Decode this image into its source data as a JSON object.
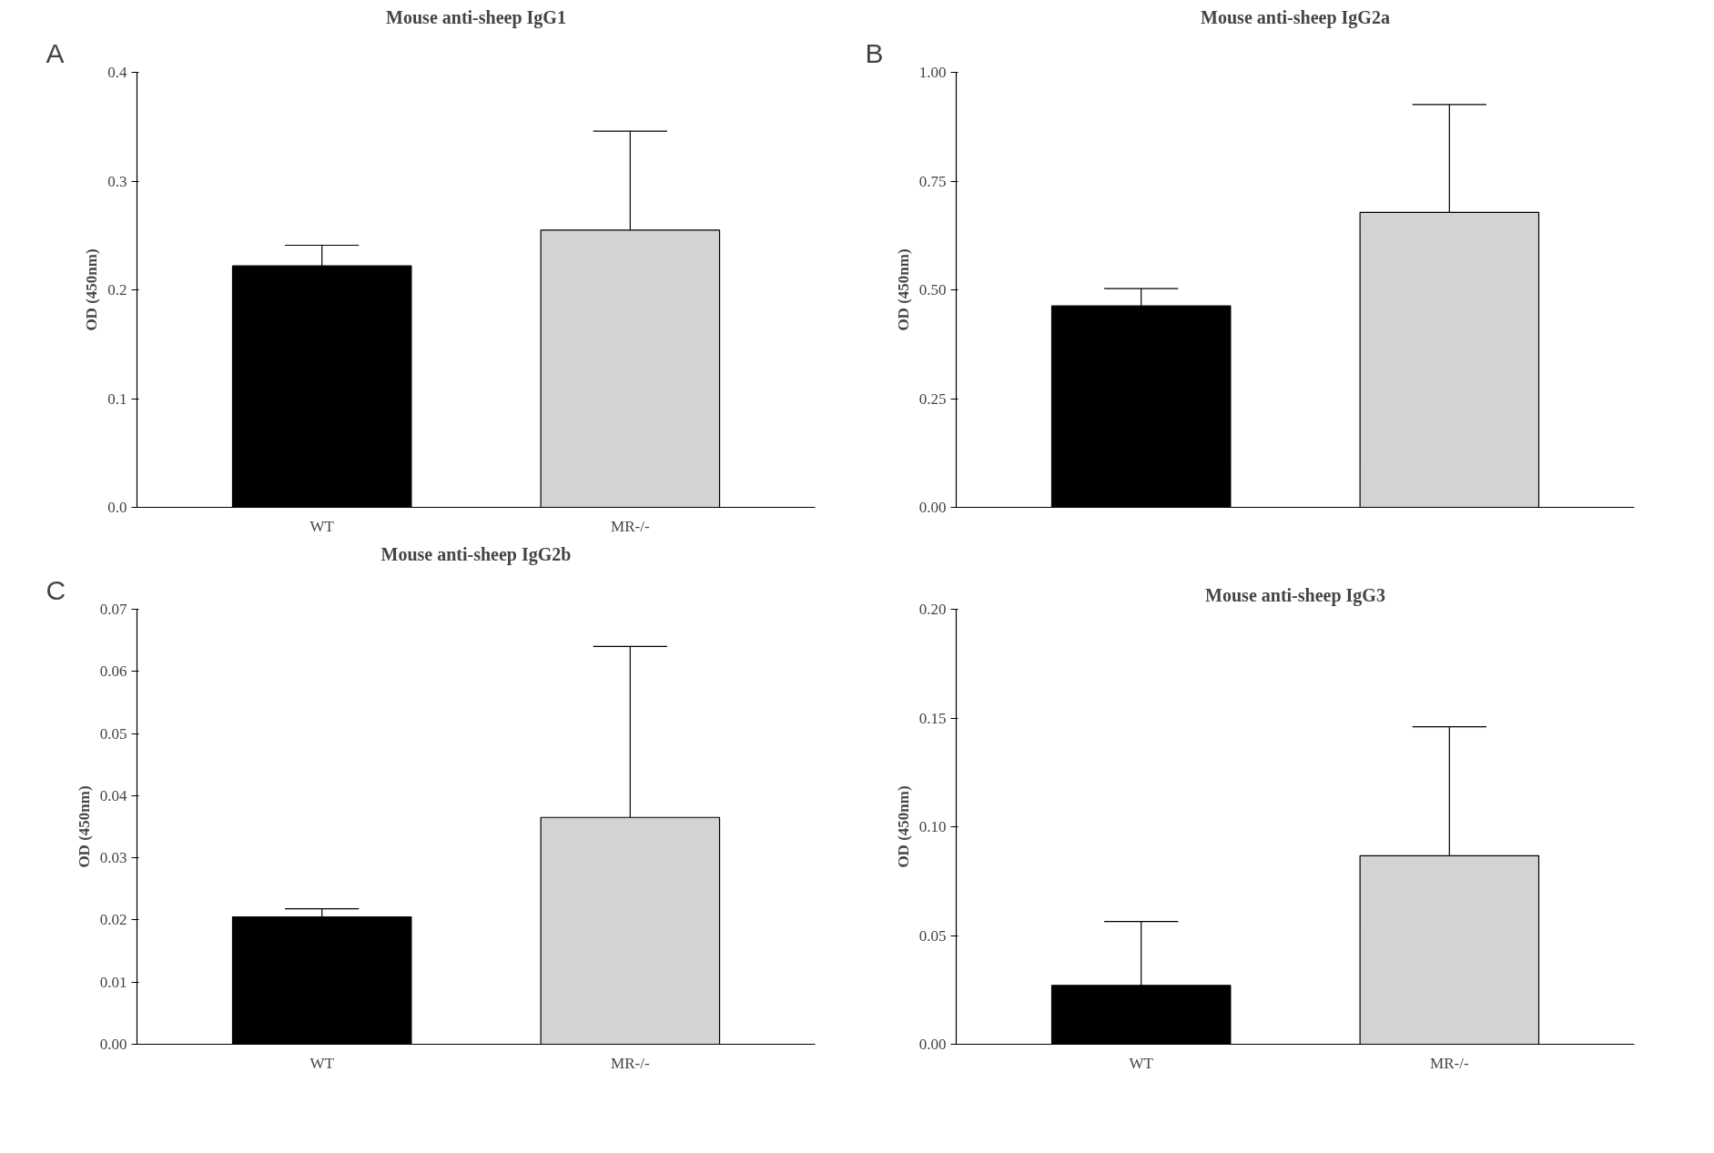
{
  "chart_data": [
    {
      "type": "bar",
      "title": "Mouse anti-sheep IgG1",
      "ylabel": "OD (450nm)",
      "annotations": [
        "A"
      ],
      "categories": [
        "WT",
        "MR-/-"
      ],
      "values": [
        0.222,
        0.255
      ],
      "colors": [
        "#000000",
        "#d3d3d3"
      ],
      "errors": [
        [
          0.222,
          0.241
        ],
        [
          0.255,
          0.346
        ]
      ],
      "ylim": [
        0,
        0.4
      ],
      "yticks": [
        {
          "value": 0,
          "label": "0.0"
        },
        0.1,
        0.2,
        0.3,
        0.4
      ],
      "grid": false
    },
    {
      "type": "bar",
      "title": "Mouse anti-sheep IgG2a",
      "ylabel": "OD (450nm)",
      "annotations": [
        "B"
      ],
      "categories": [
        null,
        null
      ],
      "values": [
        0.463,
        0.678
      ],
      "colors": [
        "#000000",
        "#d3d3d3"
      ],
      "errors": [
        [
          0.463,
          0.503
        ],
        [
          0.678,
          0.926
        ]
      ],
      "ylim": [
        0,
        1
      ],
      "yticks": [
        {
          "value": 0,
          "label": "0.00"
        },
        0.25,
        {
          "value": 0.5,
          "label": "0.50"
        },
        0.75,
        {
          "value": 1,
          "label": "1.00"
        }
      ],
      "grid": false
    },
    {
      "type": "bar",
      "title": "Mouse anti-sheep IgG2b",
      "ylabel": "OD (450nm)",
      "annotations": [
        "C"
      ],
      "categories": [
        "WT",
        "MR-/-"
      ],
      "values": [
        0.0205,
        0.0365
      ],
      "colors": [
        "#000000",
        "#d3d3d3"
      ],
      "errors": [
        [
          0.0205,
          0.0218
        ],
        [
          0.0365,
          0.064
        ]
      ],
      "ylim": [
        0,
        0.07
      ],
      "yticks": [
        {
          "value": 0,
          "label": "0.00"
        },
        0.01,
        0.02,
        0.03,
        0.04,
        0.05,
        0.06,
        0.07
      ],
      "grid": false
    },
    {
      "type": "bar",
      "title": "Mouse anti-sheep IgG3",
      "ylabel": "OD (450nm)",
      "categories": [
        "WT",
        "MR-/-"
      ],
      "values": [
        0.0271,
        0.0867
      ],
      "colors": [
        "#000000",
        "#d3d3d3"
      ],
      "errors": [
        [
          0.0271,
          0.0564
        ],
        [
          0.0867,
          0.146
        ]
      ],
      "ylim": [
        0,
        0.2
      ],
      "yticks": [
        {
          "value": 0,
          "label": "0.00"
        },
        0.05,
        {
          "value": 0.1,
          "label": "0.10"
        },
        0.15,
        {
          "value": 0.2,
          "label": "0.20"
        }
      ],
      "grid": false
    }
  ]
}
